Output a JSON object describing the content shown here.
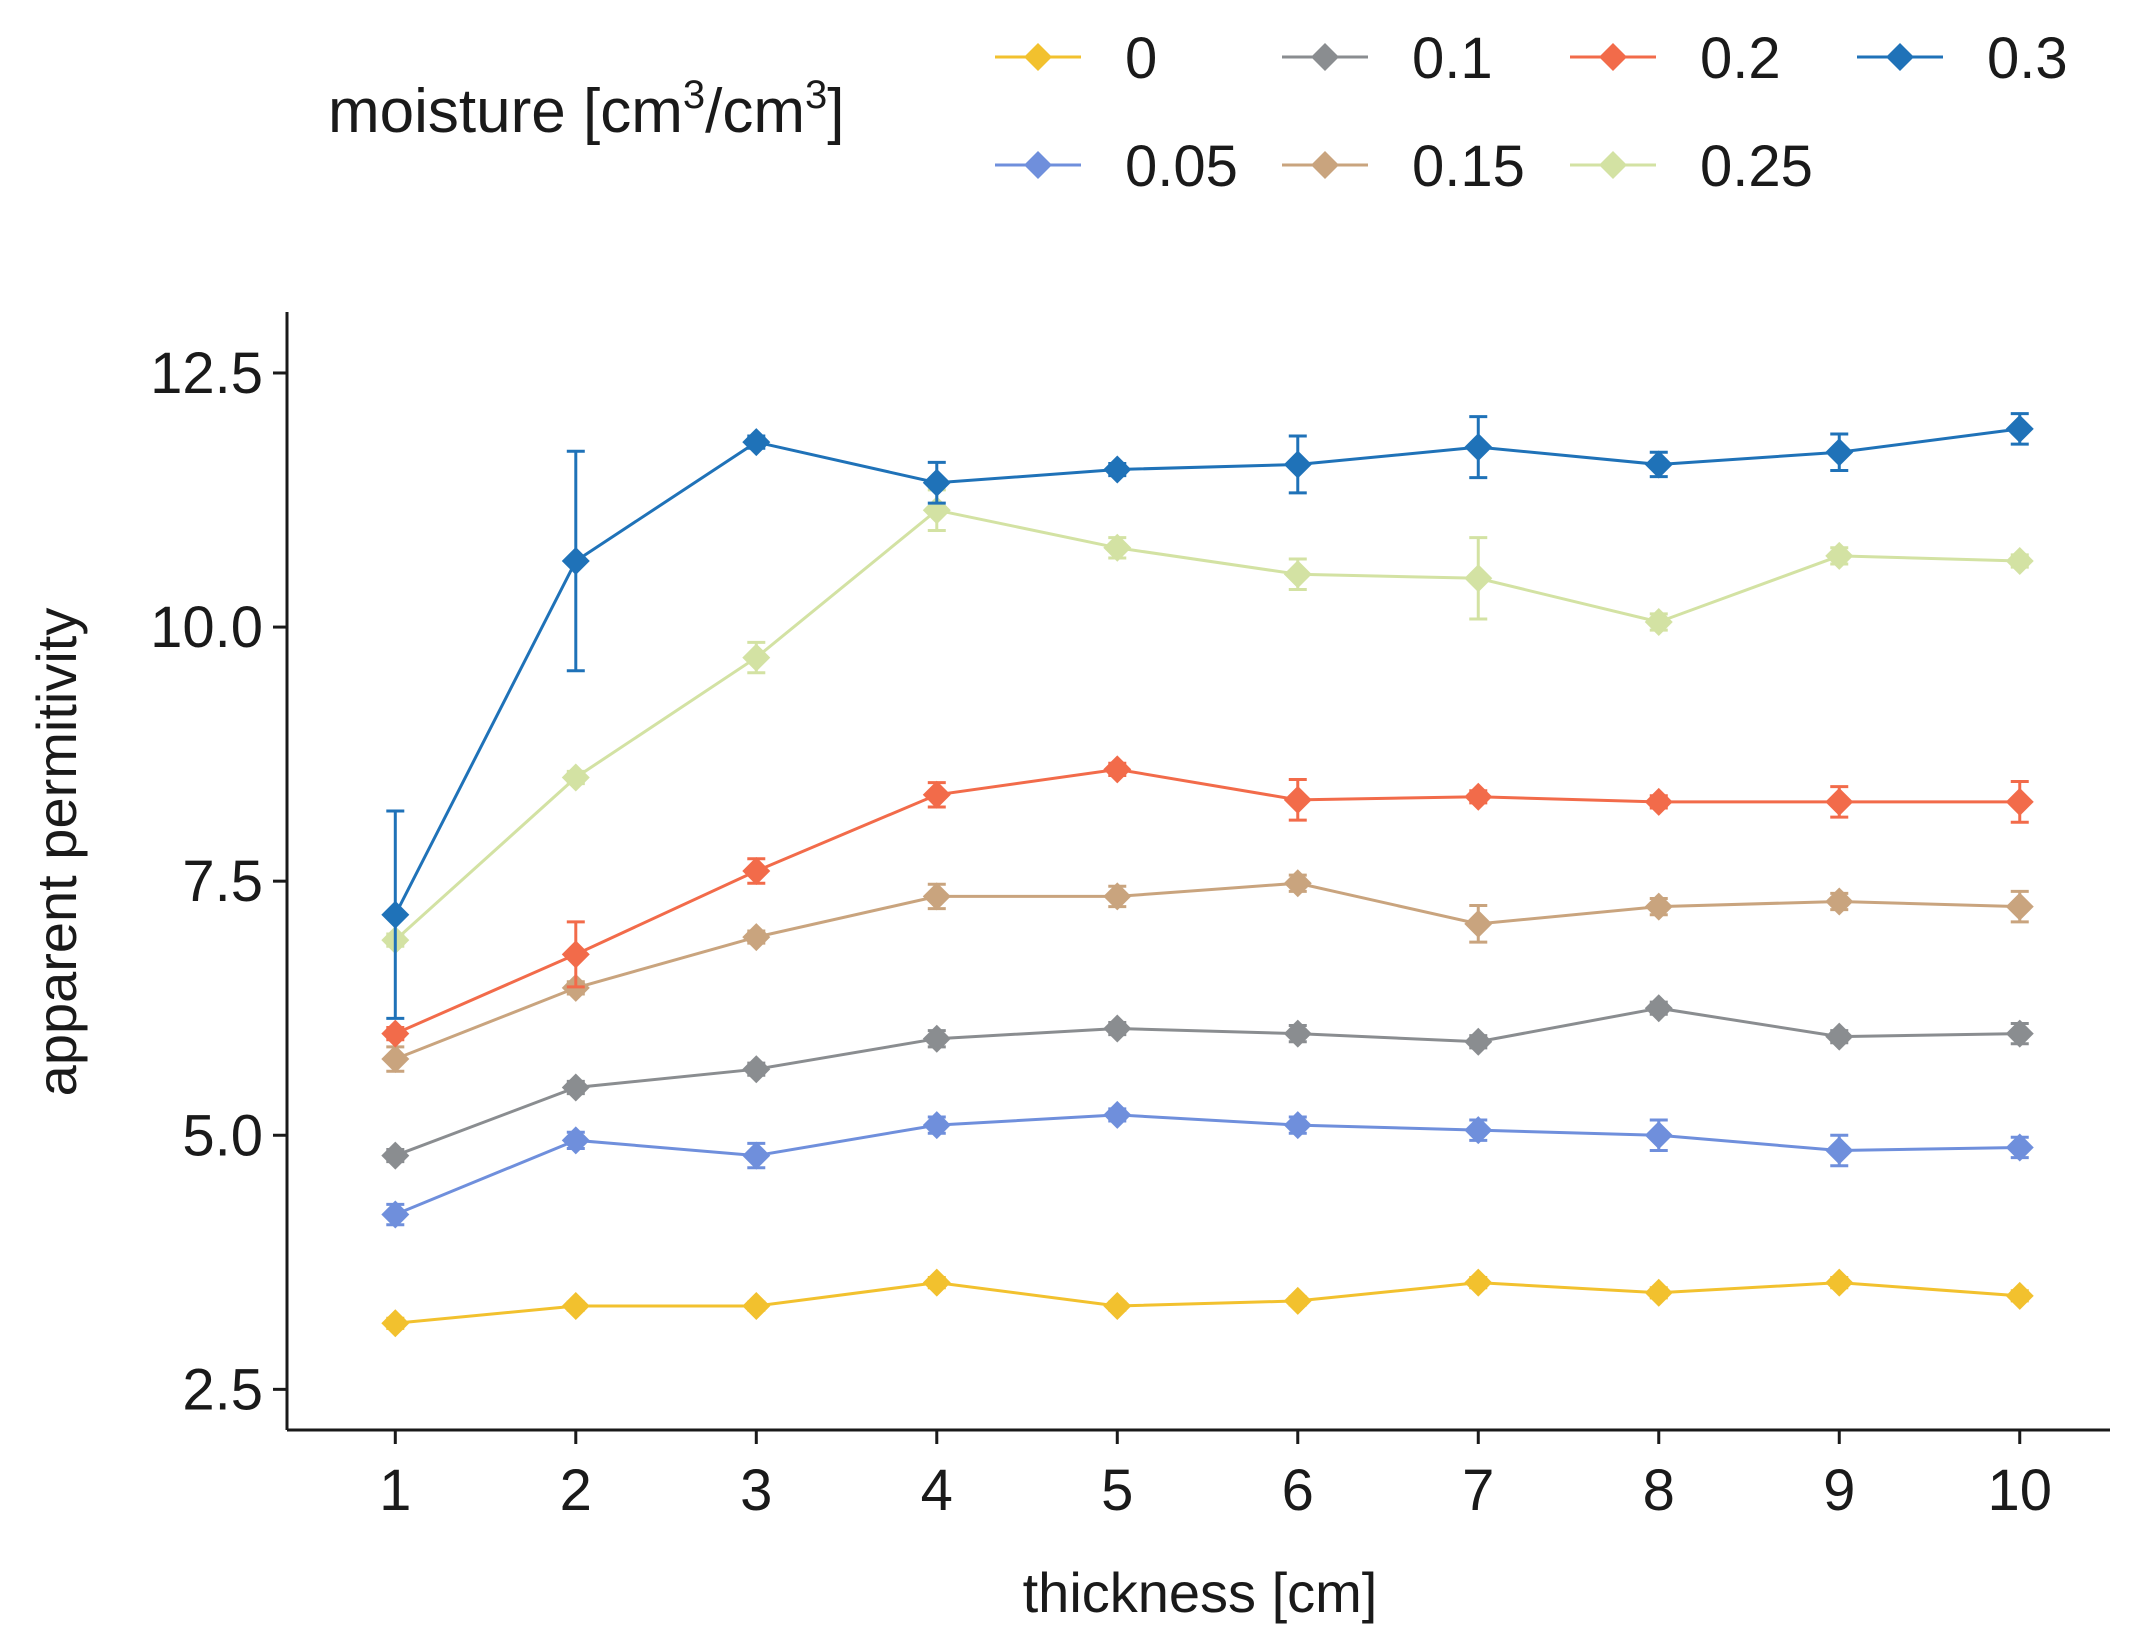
{
  "chart_data": {
    "type": "line",
    "title": "",
    "xlabel": "thickness [cm]",
    "ylabel": "apparent permitivity",
    "x": [
      1,
      2,
      3,
      4,
      5,
      6,
      7,
      8,
      9,
      10
    ],
    "x_tick_labels": [
      "1",
      "2",
      "3",
      "4",
      "5",
      "6",
      "7",
      "8",
      "9",
      "10"
    ],
    "xlim": [
      0.4,
      10.5
    ],
    "ylim": [
      2.1,
      13.1
    ],
    "y_ticks": [
      2.5,
      5.0,
      7.5,
      10.0,
      12.5
    ],
    "y_tick_labels": [
      "2.5",
      "5.0",
      "7.5",
      "10.0",
      "12.5"
    ],
    "grid": false,
    "marker": "diamond",
    "legend": {
      "title_main": "moisture [cm",
      "title_sup1": "3",
      "title_mid": "/cm",
      "title_sup2": "3",
      "title_end": "]",
      "placement": "top"
    },
    "series": [
      {
        "name": "0",
        "color": "#f2c12e",
        "values": [
          3.15,
          3.32,
          3.32,
          3.55,
          3.32,
          3.37,
          3.55,
          3.45,
          3.55,
          3.42
        ],
        "errors": [
          0.05,
          0.04,
          0.04,
          0.05,
          0.04,
          0.04,
          0.05,
          0.05,
          0.05,
          0.05
        ]
      },
      {
        "name": "0.05",
        "color": "#6f8fdc",
        "values": [
          4.22,
          4.95,
          4.8,
          5.1,
          5.2,
          5.1,
          5.05,
          5.0,
          4.85,
          4.88
        ],
        "errors": [
          0.1,
          0.08,
          0.12,
          0.08,
          0.06,
          0.08,
          0.1,
          0.15,
          0.15,
          0.1
        ]
      },
      {
        "name": "0.1",
        "color": "#8a8d90",
        "values": [
          4.8,
          5.47,
          5.65,
          5.95,
          6.05,
          6.0,
          5.92,
          6.25,
          5.97,
          6.0
        ],
        "errors": [
          0.06,
          0.06,
          0.06,
          0.08,
          0.06,
          0.08,
          0.06,
          0.06,
          0.06,
          0.1
        ]
      },
      {
        "name": "0.15",
        "color": "#c9a47e",
        "values": [
          5.75,
          6.45,
          6.95,
          7.35,
          7.35,
          7.48,
          7.08,
          7.25,
          7.3,
          7.25
        ],
        "errors": [
          0.12,
          0.06,
          0.06,
          0.12,
          0.1,
          0.08,
          0.18,
          0.08,
          0.08,
          0.15
        ]
      },
      {
        "name": "0.2",
        "color": "#f26b4a",
        "values": [
          6.0,
          6.78,
          7.6,
          8.35,
          8.6,
          8.3,
          8.33,
          8.28,
          8.28,
          8.28
        ],
        "errors": [
          0.06,
          0.32,
          0.12,
          0.12,
          0.06,
          0.2,
          0.06,
          0.06,
          0.15,
          0.2
        ]
      },
      {
        "name": "0.25",
        "color": "#d3e2a3",
        "values": [
          6.92,
          8.52,
          9.7,
          11.15,
          10.78,
          10.52,
          10.48,
          10.05,
          10.7,
          10.65
        ],
        "errors": [
          0.06,
          0.06,
          0.15,
          0.2,
          0.1,
          0.15,
          0.4,
          0.08,
          0.08,
          0.06
        ]
      },
      {
        "name": "0.3",
        "color": "#1f72b8",
        "values": [
          7.17,
          10.65,
          11.82,
          11.42,
          11.55,
          11.6,
          11.77,
          11.6,
          11.72,
          11.95
        ],
        "errors": [
          1.02,
          1.08,
          0.06,
          0.2,
          0.06,
          0.28,
          0.3,
          0.12,
          0.18,
          0.15
        ]
      }
    ],
    "legend_layout": [
      [
        "0",
        "0.1",
        "0.2",
        "0.3"
      ],
      [
        "0.05",
        "0.15",
        "0.25"
      ]
    ]
  }
}
